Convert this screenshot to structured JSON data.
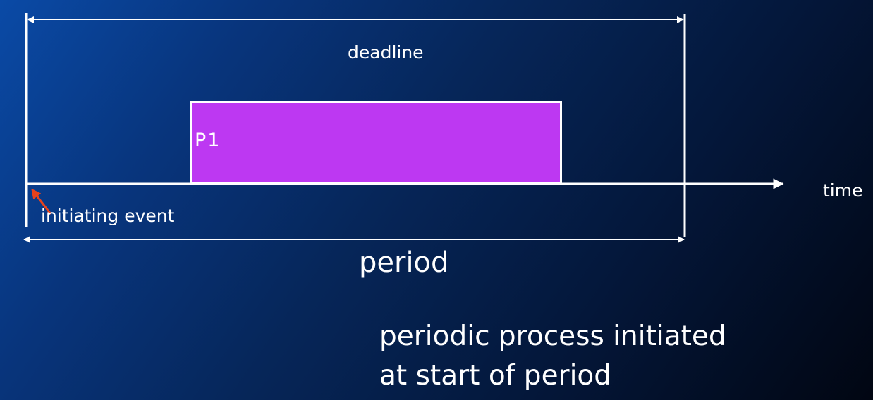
{
  "diagram": {
    "deadline_label": "deadline",
    "process_label": "P1",
    "time_axis_label": "time",
    "initiating_event_label": "initiating event",
    "period_label": "period",
    "caption": {
      "line1": "periodic process initiated",
      "line2": "at start of period"
    }
  },
  "colors": {
    "process_fill": "#bd38f2",
    "line": "#ffffff",
    "event_arrow": "#e8421c"
  }
}
